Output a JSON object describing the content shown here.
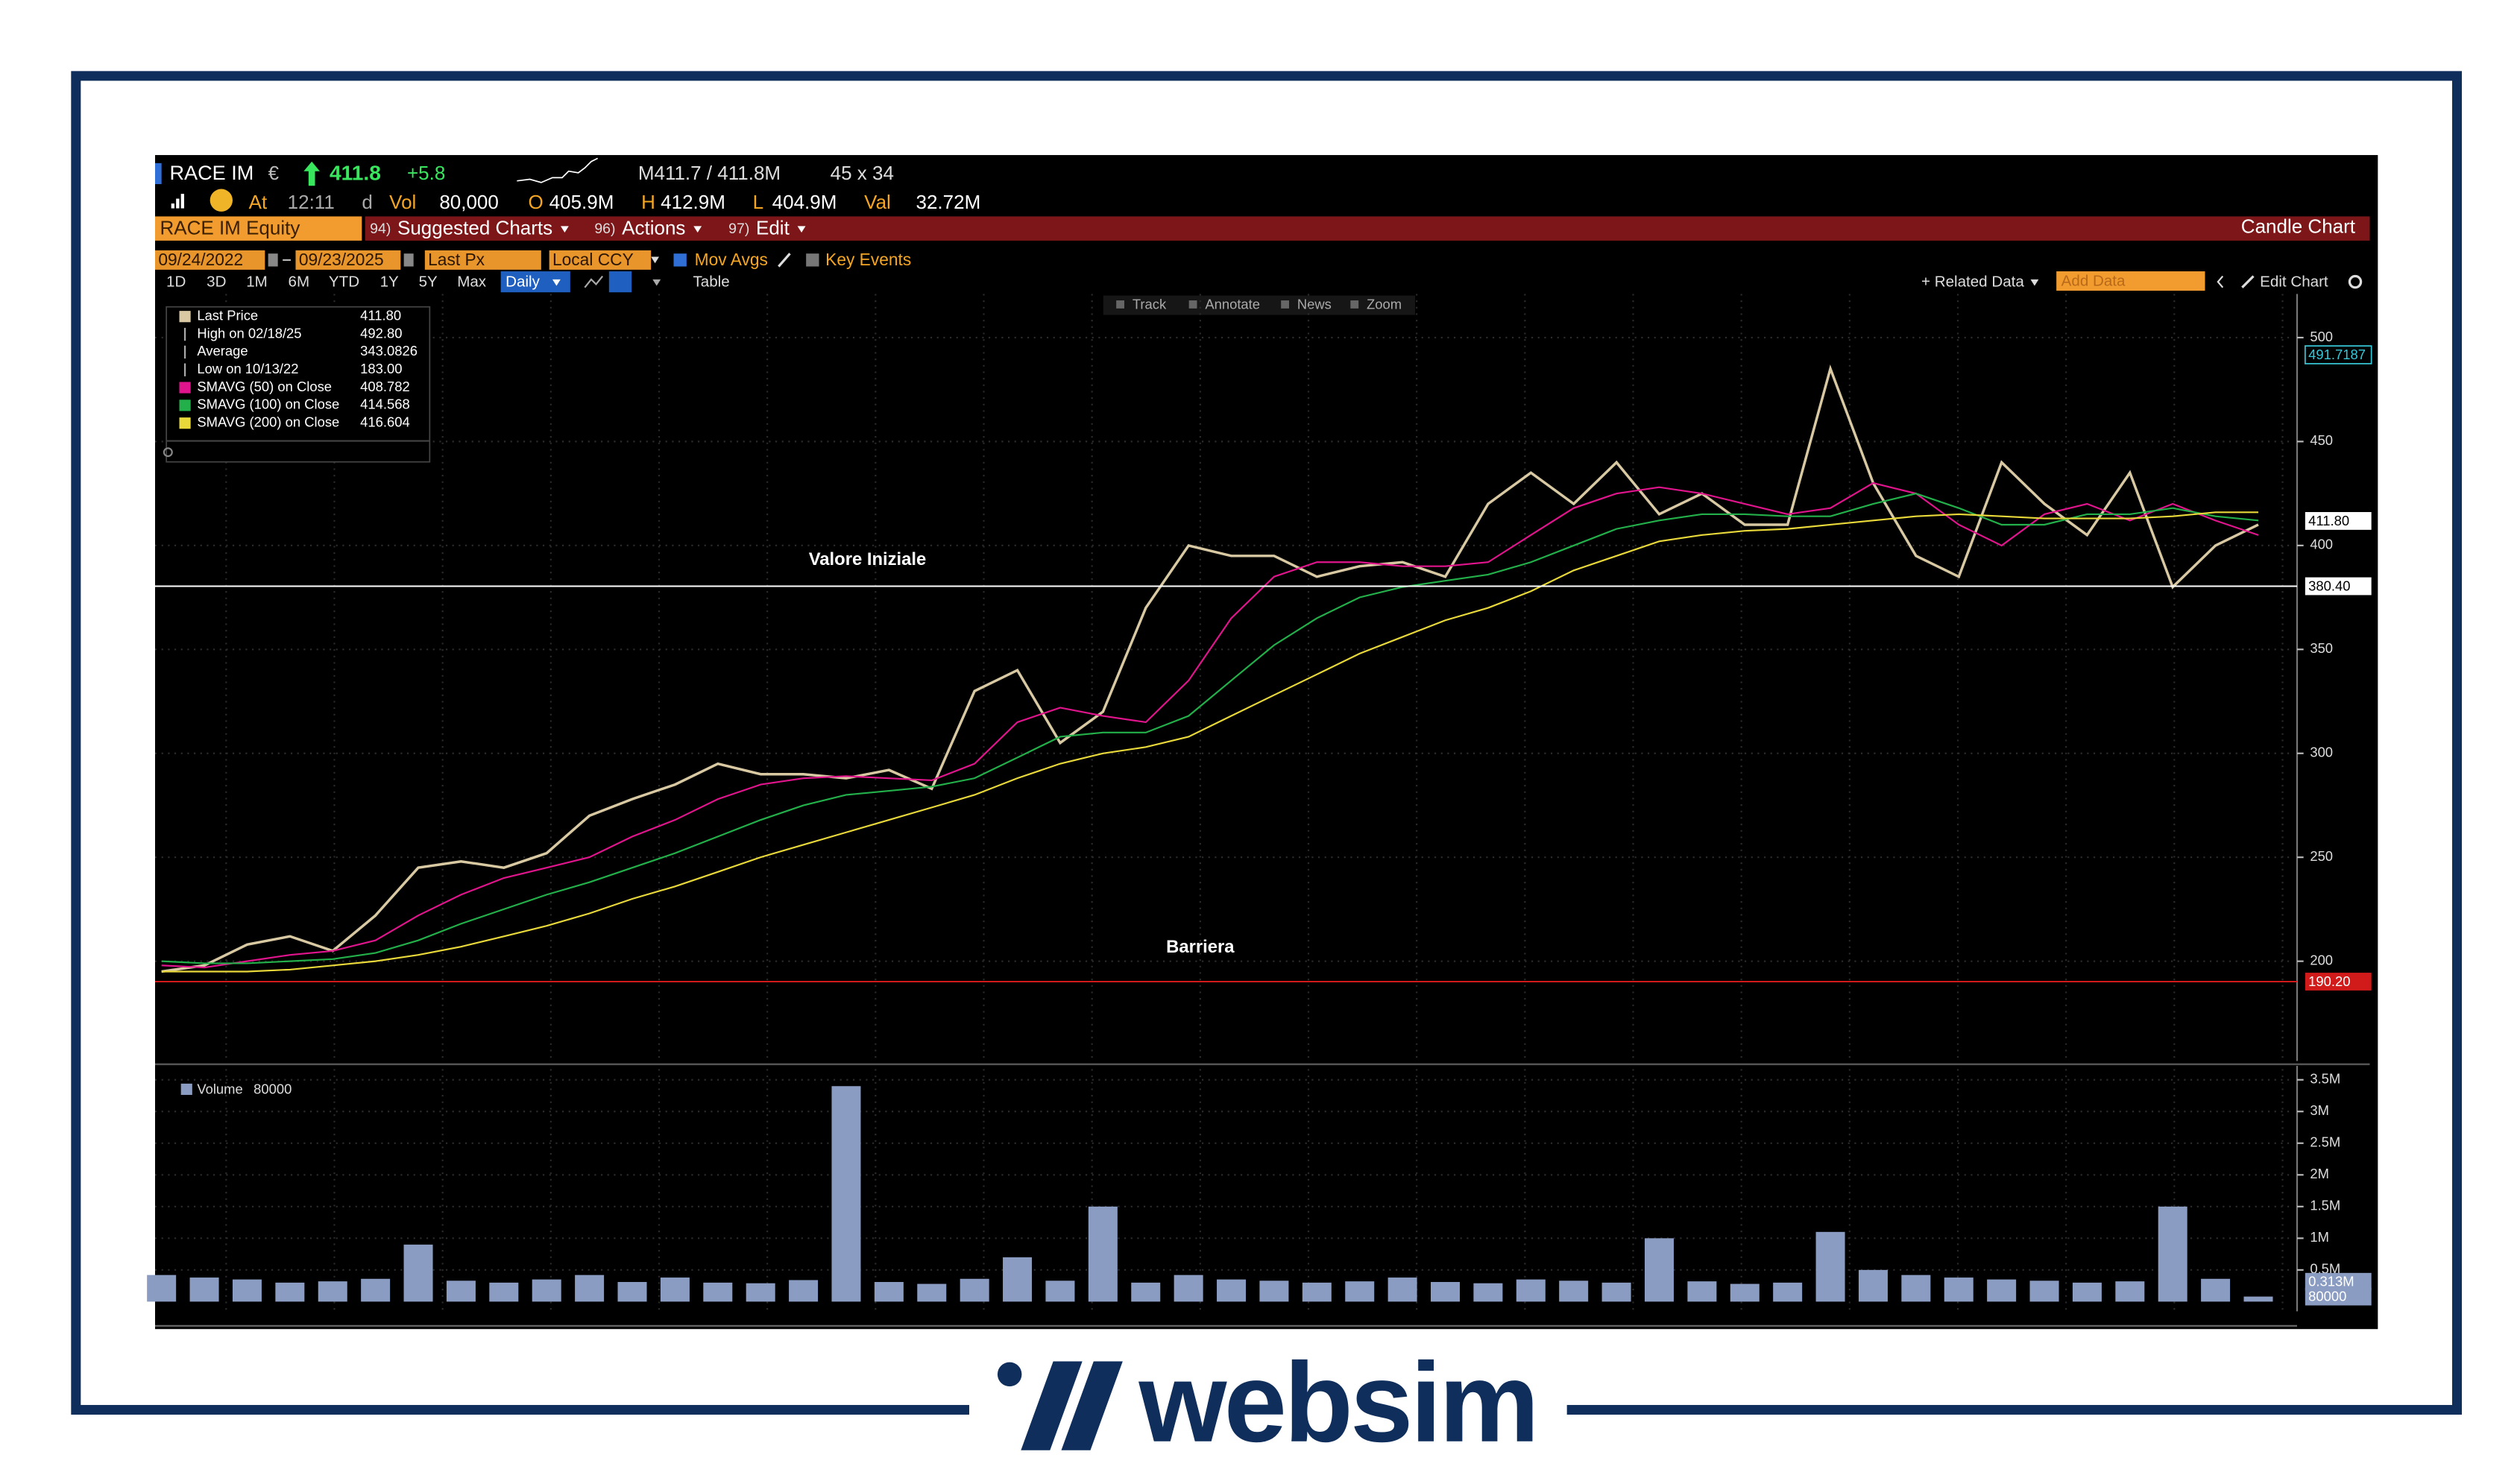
{
  "header": {
    "ticker": "RACE IM",
    "currency": "€",
    "last": "411.8",
    "change": "+5.8",
    "bid_ask": "M411.7 / 411.8M",
    "size": "45 x 34",
    "time_label": "At",
    "time": "12:11",
    "time_flag": "d",
    "vol_label": "Vol",
    "vol": "80,000",
    "open_label": "O",
    "open": "405.9M",
    "high_label": "H",
    "high": "412.9M",
    "low_label": "L",
    "low": "404.9M",
    "val_label": "Val",
    "val": "32.72M"
  },
  "menu": {
    "security": "RACE IM Equity",
    "items": [
      {
        "code": "94)",
        "label": "Suggested Charts"
      },
      {
        "code": "96)",
        "label": "Actions"
      },
      {
        "code": "97)",
        "label": "Edit"
      }
    ],
    "chart_kind": "Candle Chart"
  },
  "settings": {
    "start": "09/24/2022",
    "end": "09/23/2025",
    "field": "Last Px",
    "currency": "Local CCY",
    "mov_avgs": "Mov Avgs",
    "key_events": "Key Events"
  },
  "toolbar": {
    "periods": [
      "1D",
      "3D",
      "1M",
      "6M",
      "YTD",
      "1Y",
      "5Y",
      "Max"
    ],
    "frequency": "Daily",
    "table": "Table",
    "related": "+ Related Data",
    "add_data": "Add Data",
    "edit_chart": "Edit Chart",
    "tools": [
      "Track",
      "Annotate",
      "News",
      "Zoom"
    ]
  },
  "legend": {
    "rows": [
      {
        "name": "High on 02/18/25",
        "value": "492.80"
      },
      {
        "name": "Average",
        "value": "343.0826"
      },
      {
        "name": "Low on 10/13/22",
        "value": "183.00"
      }
    ]
  },
  "chart_data": [
    {
      "type": "line",
      "categories": [
        null,
        null,
        null,
        null,
        null,
        null,
        null,
        null,
        null,
        null,
        null,
        null,
        null,
        null,
        null,
        null,
        null,
        null,
        null,
        null,
        null,
        null,
        null,
        null,
        null,
        null,
        null,
        null,
        null,
        null,
        null,
        null,
        null,
        null,
        null,
        null,
        null,
        null,
        null,
        null,
        null,
        null,
        null,
        null,
        null,
        null,
        null,
        null,
        null,
        null
      ],
      "series": [
        {
          "name": "Last Price",
          "legend_value": "411.80",
          "color": "#d8c9a3",
          "values": [
            195,
            198,
            208,
            212,
            205,
            222,
            245,
            248,
            245,
            252,
            270,
            278,
            285,
            295,
            290,
            290,
            288,
            292,
            283,
            330,
            340,
            305,
            320,
            370,
            400,
            395,
            395,
            385,
            390,
            392,
            385,
            420,
            435,
            420,
            440,
            415,
            425,
            410,
            410,
            485,
            430,
            395,
            385,
            440,
            420,
            405,
            435,
            380,
            400,
            410
          ]
        },
        {
          "name": "SMAVG (50) on Close",
          "legend_value": "408.782",
          "color": "#e0148c",
          "values": [
            198,
            197,
            200,
            203,
            205,
            210,
            222,
            232,
            240,
            245,
            250,
            260,
            268,
            278,
            285,
            288,
            289,
            288,
            287,
            295,
            315,
            322,
            318,
            315,
            335,
            365,
            385,
            392,
            392,
            390,
            390,
            392,
            405,
            418,
            425,
            428,
            425,
            420,
            415,
            418,
            430,
            425,
            410,
            400,
            415,
            420,
            412,
            420,
            412,
            405
          ]
        },
        {
          "name": "SMAVG (100) on Close",
          "legend_value": "414.568",
          "color": "#23b04a",
          "values": [
            200,
            199,
            199,
            200,
            201,
            204,
            210,
            218,
            225,
            232,
            238,
            245,
            252,
            260,
            268,
            275,
            280,
            282,
            284,
            288,
            298,
            308,
            310,
            310,
            318,
            335,
            352,
            365,
            375,
            380,
            383,
            386,
            392,
            400,
            408,
            412,
            415,
            415,
            414,
            414,
            420,
            425,
            418,
            410,
            410,
            415,
            415,
            418,
            414,
            412
          ]
        },
        {
          "name": "SMAVG (200) on Close",
          "legend_value": "416.604",
          "color": "#e8d83a",
          "values": [
            195,
            195,
            195,
            196,
            198,
            200,
            203,
            207,
            212,
            217,
            223,
            230,
            236,
            243,
            250,
            256,
            262,
            268,
            274,
            280,
            288,
            295,
            300,
            303,
            308,
            318,
            328,
            338,
            348,
            356,
            364,
            370,
            378,
            388,
            395,
            402,
            405,
            407,
            408,
            410,
            412,
            414,
            415,
            414,
            413,
            413,
            413,
            414,
            416,
            416
          ]
        }
      ],
      "reference_lines": [
        {
          "label": "Valore Iniziale",
          "value": 380.4,
          "value_label": "380.40",
          "color": "#ffffff"
        },
        {
          "label": "Barriera",
          "value": 190.2,
          "value_label": "190.20",
          "color": "#d11a1a"
        }
      ],
      "price_labels": [
        {
          "value": 491.7187,
          "value_label": "491.7187",
          "color": "#37c6d6"
        },
        {
          "value": 411.8,
          "value_label": "411.80",
          "color": "#ffffff"
        }
      ],
      "ylim": [
        152,
        521
      ],
      "yticks": [
        200,
        250,
        300,
        350,
        400,
        450,
        500
      ],
      "grid": true
    },
    {
      "type": "bar",
      "categories": [
        null,
        null,
        null,
        null,
        null,
        null,
        null,
        null,
        null,
        null,
        null,
        null,
        null,
        null,
        null,
        null,
        null,
        null,
        null,
        null,
        null,
        null,
        null,
        null,
        null,
        null,
        null,
        null,
        null,
        null,
        null,
        null,
        null,
        null,
        null,
        null,
        null,
        null,
        null,
        null,
        null,
        null,
        null,
        null,
        null,
        null,
        null,
        null,
        null,
        null
      ],
      "series": [
        {
          "name": "Volume",
          "color": "#8a9cc2",
          "values": [
            420000,
            380000,
            350000,
            300000,
            320000,
            360000,
            900000,
            330000,
            300000,
            350000,
            420000,
            310000,
            380000,
            300000,
            290000,
            340000,
            3400000,
            310000,
            280000,
            360000,
            700000,
            330000,
            1500000,
            300000,
            420000,
            350000,
            330000,
            300000,
            320000,
            380000,
            310000,
            290000,
            350000,
            330000,
            300000,
            1000000,
            320000,
            280000,
            300000,
            1100000,
            500000,
            420000,
            380000,
            350000,
            330000,
            300000,
            320000,
            1500000,
            360000,
            80000
          ]
        }
      ],
      "markers": [
        {
          "value": 313000,
          "label": "0.313M"
        },
        {
          "value": 80000,
          "label": "80000"
        }
      ],
      "ylim": [
        0,
        3720000
      ],
      "yticks": [
        {
          "value": 500000,
          "label": "0.5M"
        },
        {
          "value": 1000000,
          "label": "1M"
        },
        {
          "value": 1500000,
          "label": "1.5M"
        },
        {
          "value": 2000000,
          "label": "2M"
        },
        {
          "value": 2500000,
          "label": "2.5M"
        },
        {
          "value": 3000000,
          "label": "3M"
        },
        {
          "value": 3500000,
          "label": "3.5M"
        }
      ],
      "grid": true
    }
  ],
  "brand": "websim"
}
